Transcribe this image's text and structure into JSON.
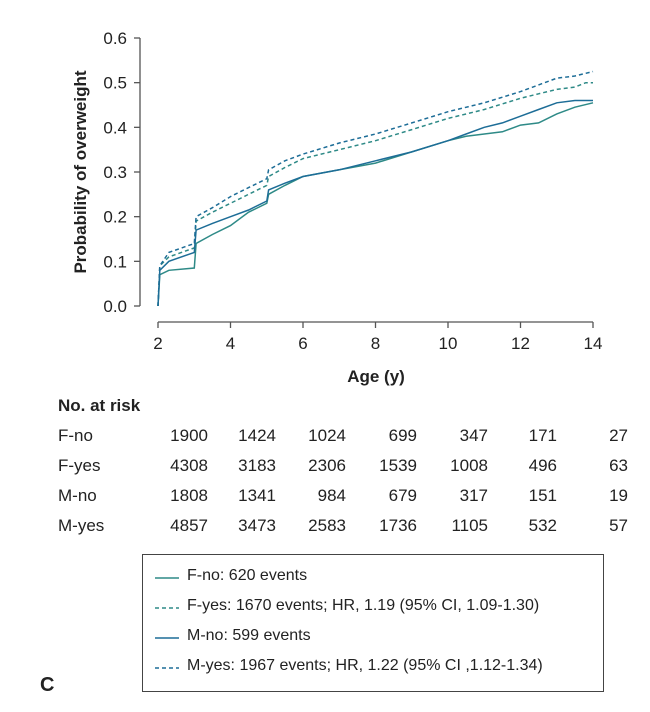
{
  "panel_letter": "C",
  "colors": {
    "teal": "#2e8a87",
    "blue": "#1d6d97",
    "axis": "#555555",
    "text": "#222222"
  },
  "chart_data": {
    "type": "line",
    "title": "",
    "xlabel": "Age (y)",
    "ylabel": "Probability of overweight",
    "xlim": [
      2,
      14
    ],
    "ylim": [
      0.0,
      0.6
    ],
    "xticks": [
      2,
      4,
      6,
      8,
      10,
      12,
      14
    ],
    "yticks": [
      "0.0",
      "0.1",
      "0.2",
      "0.3",
      "0.4",
      "0.5",
      "0.6"
    ],
    "grid": false,
    "legend_position": "bottom",
    "series": [
      {
        "name": "F-no",
        "color": "#2e8a87",
        "dash": false,
        "x": [
          2,
          2.05,
          2.3,
          3.0,
          3.05,
          3.5,
          4.0,
          4.5,
          5.0,
          5.05,
          5.5,
          6,
          7,
          8,
          9,
          10,
          10.5,
          11,
          11.5,
          12,
          12.5,
          13,
          13.5,
          14
        ],
        "y": [
          0.0,
          0.07,
          0.08,
          0.085,
          0.14,
          0.16,
          0.18,
          0.21,
          0.23,
          0.25,
          0.27,
          0.29,
          0.305,
          0.32,
          0.345,
          0.37,
          0.38,
          0.385,
          0.39,
          0.405,
          0.41,
          0.43,
          0.445,
          0.455
        ]
      },
      {
        "name": "F-yes",
        "color": "#2e8a87",
        "dash": true,
        "x": [
          2,
          2.05,
          2.3,
          3.0,
          3.05,
          3.5,
          4.0,
          4.5,
          5.0,
          5.05,
          5.5,
          6,
          7,
          8,
          9,
          10,
          11,
          12,
          12.5,
          13,
          13.5,
          13.8,
          14
        ],
        "y": [
          0.0,
          0.09,
          0.11,
          0.13,
          0.19,
          0.21,
          0.23,
          0.25,
          0.27,
          0.29,
          0.31,
          0.33,
          0.35,
          0.37,
          0.395,
          0.42,
          0.44,
          0.465,
          0.475,
          0.485,
          0.49,
          0.5,
          0.5
        ]
      },
      {
        "name": "M-no",
        "color": "#1d6d97",
        "dash": false,
        "x": [
          2,
          2.05,
          2.3,
          3.0,
          3.05,
          3.5,
          4.0,
          4.5,
          5.0,
          5.05,
          5.5,
          6,
          7,
          8,
          9,
          10,
          10.5,
          11,
          11.5,
          12,
          12.5,
          13,
          13.5,
          14
        ],
        "y": [
          0.0,
          0.08,
          0.1,
          0.12,
          0.17,
          0.185,
          0.2,
          0.215,
          0.235,
          0.26,
          0.275,
          0.29,
          0.305,
          0.325,
          0.345,
          0.37,
          0.385,
          0.4,
          0.41,
          0.425,
          0.44,
          0.455,
          0.46,
          0.46
        ]
      },
      {
        "name": "M-yes",
        "color": "#1d6d97",
        "dash": true,
        "x": [
          2,
          2.05,
          2.3,
          3.0,
          3.05,
          3.5,
          4.0,
          4.5,
          5.0,
          5.05,
          5.5,
          6,
          7,
          8,
          9,
          10,
          11,
          12,
          12.5,
          13,
          13.5,
          14
        ],
        "y": [
          0.0,
          0.09,
          0.12,
          0.14,
          0.2,
          0.22,
          0.245,
          0.265,
          0.285,
          0.305,
          0.325,
          0.34,
          0.365,
          0.385,
          0.41,
          0.435,
          0.455,
          0.48,
          0.495,
          0.51,
          0.515,
          0.525
        ]
      }
    ]
  },
  "risk_table": {
    "title": "No. at risk",
    "rows": [
      {
        "label": "F-no",
        "values": [
          "1900",
          "1424",
          "1024",
          "699",
          "347",
          "171",
          "27"
        ]
      },
      {
        "label": "F-yes",
        "values": [
          "4308",
          "3183",
          "2306",
          "1539",
          "1008",
          "496",
          "63"
        ]
      },
      {
        "label": "M-no",
        "values": [
          "1808",
          "1341",
          "984",
          "679",
          "317",
          "151",
          "19"
        ]
      },
      {
        "label": "M-yes",
        "values": [
          "4857",
          "3473",
          "2583",
          "1736",
          "1105",
          "532",
          "57"
        ]
      }
    ]
  },
  "legend": {
    "items": [
      {
        "text": "F-no: 620 events",
        "color": "#2e8a87",
        "dash": false
      },
      {
        "text": "F-yes: 1670 events; HR, 1.19 (95% CI, 1.09-1.30)",
        "color": "#2e8a87",
        "dash": true
      },
      {
        "text": "M-no: 599 events",
        "color": "#1d6d97",
        "dash": false
      },
      {
        "text": "M-yes: 1967 events; HR, 1.22 (95% CI ,1.12-1.34)",
        "color": "#1d6d97",
        "dash": true
      }
    ]
  }
}
